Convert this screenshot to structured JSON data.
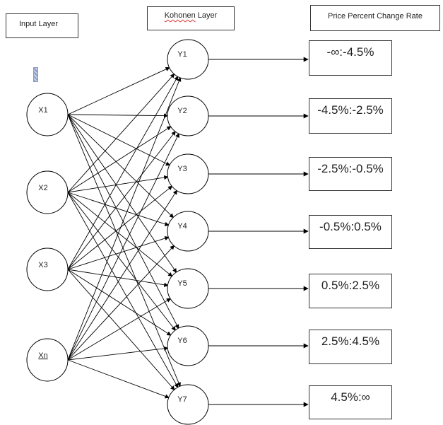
{
  "headers": {
    "input_layer": "Input Layer",
    "kohonen_layer": "Kohonen Layer",
    "price_change": "Price Percent Change Rate"
  },
  "input_nodes": [
    "X1",
    "X2",
    "X3",
    "Xn"
  ],
  "kohonen_nodes": [
    "Y1",
    "Y2",
    "Y3",
    "Y4",
    "Y5",
    "Y6",
    "Y7"
  ],
  "output_ranges": [
    "-∞:-4.5%",
    "-4.5%:-2.5%",
    "-2.5%:-0.5%",
    "-0.5%:0.5%",
    "0.5%:2.5%",
    "2.5%:4.5%",
    "4.5%:∞"
  ],
  "colors": {
    "line": "#000000",
    "marker": "#8da0c8"
  }
}
